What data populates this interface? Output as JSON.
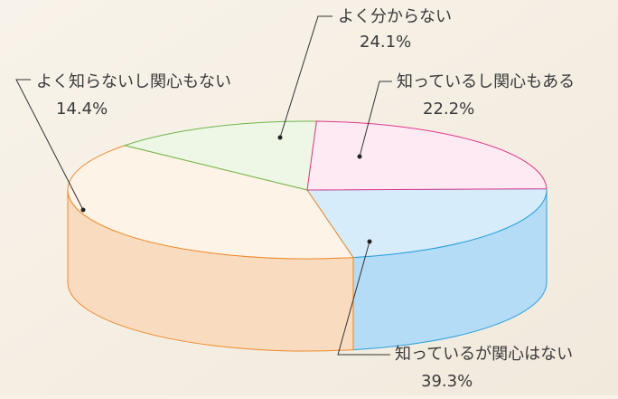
{
  "chart_data": {
    "type": "pie",
    "style": "3d",
    "slices": [
      {
        "label": "知っているし関心もある",
        "value_text": "22.2%",
        "value": 22.2,
        "top_color": "#d6ecfb",
        "side_color": "#b4dcf6",
        "edge_color": "#2aa0de"
      },
      {
        "label": "知っているが関心はない",
        "value_text": "39.3%",
        "value": 39.3,
        "top_color": "#fdf3e6",
        "side_color": "#f9dcc0",
        "edge_color": "#ef8a2a"
      },
      {
        "label": "よく知らないし関心もない",
        "value_text": "14.4%",
        "value": 14.4,
        "top_color": "#eef6e6",
        "side_color": "#d2e8bf",
        "edge_color": "#6cb84a"
      },
      {
        "label": "よく分からない",
        "value_text": "24.1%",
        "value": 24.1,
        "top_color": "#fdeaf2",
        "side_color": "#f7c4dc",
        "edge_color": "#de3a8c"
      }
    ]
  }
}
